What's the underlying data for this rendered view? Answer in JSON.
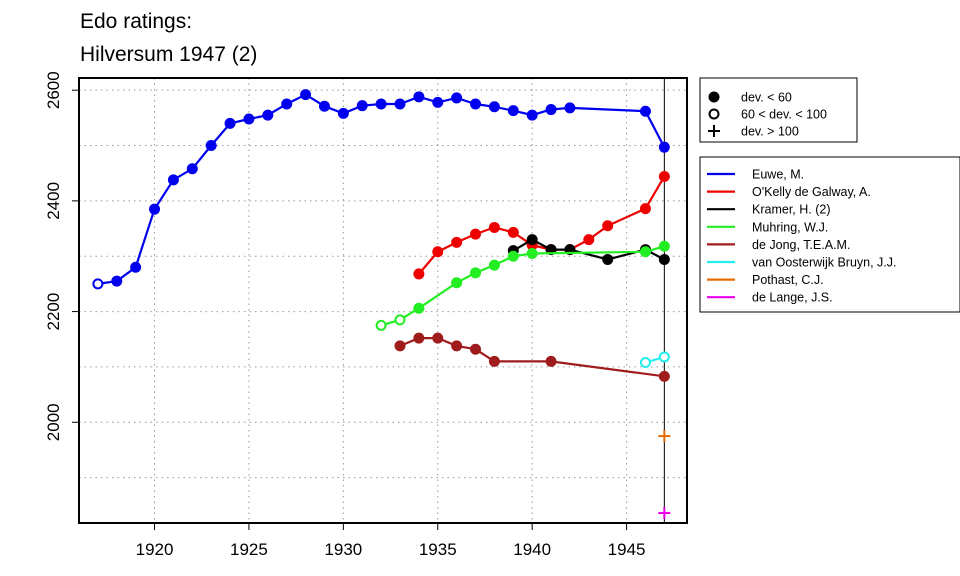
{
  "chart_data": {
    "type": "line",
    "title": "Edo ratings:",
    "subtitle": "Hilversum 1947 (2)",
    "xlabel": "",
    "ylabel": "",
    "xlim": [
      1916,
      1948.2
    ],
    "ylim": [
      1818,
      2622
    ],
    "x_ticks": [
      1920,
      1925,
      1930,
      1935,
      1940,
      1945
    ],
    "y_ticks": [
      2000,
      2200,
      2400,
      2600
    ],
    "y_tick_labels_rotated": true,
    "grid": "dotted",
    "reference_line_x": 1947,
    "marker_legend": [
      {
        "symbol": "filled-circle",
        "label": "dev. < 60"
      },
      {
        "symbol": "open-circle",
        "label": "60 < dev. < 100"
      },
      {
        "symbol": "plus",
        "label": "dev. > 100"
      }
    ],
    "legend_placement": "right",
    "series": [
      {
        "name": "Euwe, M.",
        "color": "#0000ee",
        "points": [
          [
            1917,
            2250,
            "o"
          ],
          [
            1918,
            2255,
            "f"
          ],
          [
            1919,
            2280,
            "f"
          ],
          [
            1920,
            2385,
            "f"
          ],
          [
            1921,
            2438,
            "f"
          ],
          [
            1922,
            2458,
            "f"
          ],
          [
            1923,
            2500,
            "f"
          ],
          [
            1924,
            2540,
            "f"
          ],
          [
            1925,
            2548,
            "f"
          ],
          [
            1926,
            2555,
            "f"
          ],
          [
            1927,
            2575,
            "f"
          ],
          [
            1928,
            2592,
            "f"
          ],
          [
            1929,
            2571,
            "f"
          ],
          [
            1930,
            2558,
            "f"
          ],
          [
            1931,
            2572,
            "f"
          ],
          [
            1932,
            2575,
            "f"
          ],
          [
            1933,
            2575,
            "f"
          ],
          [
            1934,
            2588,
            "f"
          ],
          [
            1935,
            2578,
            "f"
          ],
          [
            1936,
            2586,
            "f"
          ],
          [
            1937,
            2575,
            "f"
          ],
          [
            1938,
            2570,
            "f"
          ],
          [
            1939,
            2563,
            "f"
          ],
          [
            1940,
            2555,
            "f"
          ],
          [
            1941,
            2565,
            "f"
          ],
          [
            1942,
            2568,
            "f"
          ],
          [
            1946,
            2562,
            "f"
          ],
          [
            1947,
            2497,
            "f"
          ]
        ]
      },
      {
        "name": "O'Kelly de Galway, A.",
        "color": "#ee0000",
        "points": [
          [
            1934,
            2268,
            "f"
          ],
          [
            1935,
            2308,
            "f"
          ],
          [
            1936,
            2325,
            "f"
          ],
          [
            1937,
            2340,
            "f"
          ],
          [
            1938,
            2352,
            "f"
          ],
          [
            1939,
            2343,
            "f"
          ],
          [
            1940,
            2320,
            "f"
          ],
          [
            1941,
            2312,
            "f"
          ],
          [
            1942,
            2312,
            "f"
          ],
          [
            1943,
            2330,
            "f"
          ],
          [
            1944,
            2355,
            "f"
          ],
          [
            1946,
            2386,
            "f"
          ],
          [
            1947,
            2444,
            "f"
          ]
        ]
      },
      {
        "name": "Kramer, H. (2)",
        "color": "#000000",
        "points": [
          [
            1939,
            2310,
            "f"
          ],
          [
            1940,
            2330,
            "f"
          ],
          [
            1941,
            2312,
            "f"
          ],
          [
            1942,
            2312,
            "f"
          ],
          [
            1944,
            2294,
            "f"
          ],
          [
            1946,
            2312,
            "f"
          ],
          [
            1947,
            2294,
            "f"
          ]
        ]
      },
      {
        "name": "Muhring, W.J.",
        "color": "#22ee22",
        "points": [
          [
            1932,
            2175,
            "o"
          ],
          [
            1933,
            2185,
            "o"
          ],
          [
            1934,
            2206,
            "f"
          ],
          [
            1936,
            2252,
            "f"
          ],
          [
            1937,
            2270,
            "f"
          ],
          [
            1938,
            2284,
            "f"
          ],
          [
            1939,
            2300,
            "f"
          ],
          [
            1940,
            2305,
            "f"
          ],
          [
            1946,
            2308,
            "f"
          ],
          [
            1947,
            2318,
            "f"
          ]
        ]
      },
      {
        "name": "de Jong, T.E.A.M.",
        "color": "#a01c1c",
        "points": [
          [
            1933,
            2138,
            "f"
          ],
          [
            1934,
            2152,
            "f"
          ],
          [
            1935,
            2152,
            "f"
          ],
          [
            1936,
            2138,
            "f"
          ],
          [
            1937,
            2132,
            "f"
          ],
          [
            1938,
            2110,
            "f"
          ],
          [
            1941,
            2110,
            "f"
          ],
          [
            1947,
            2083,
            "f"
          ]
        ]
      },
      {
        "name": "van Oosterwijk Bruyn, J.J.",
        "color": "#22eeee",
        "points": [
          [
            1946,
            2108,
            "o"
          ],
          [
            1947,
            2118,
            "o"
          ]
        ]
      },
      {
        "name": "Pothast, C.J.",
        "color": "#e66a00",
        "points": [
          [
            1947,
            1975,
            "p"
          ]
        ]
      },
      {
        "name": "de Lange, J.S.",
        "color": "#ee00ee",
        "points": [
          [
            1947,
            1836,
            "p"
          ]
        ]
      }
    ]
  }
}
